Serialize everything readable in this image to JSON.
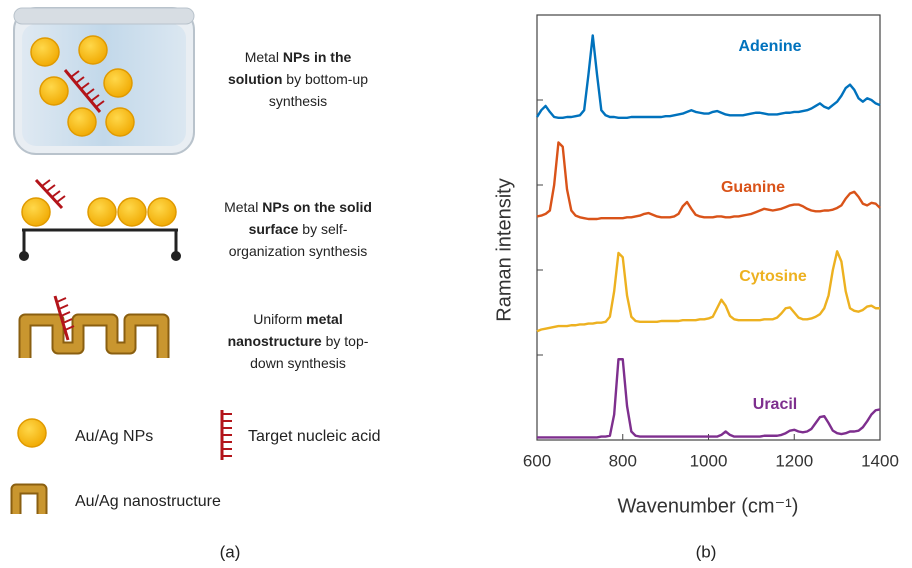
{
  "panel_labels": [
    "(a)",
    "(b)"
  ],
  "diagram": {
    "methods": [
      {
        "lines": [
          [
            {
              "text": "Metal ",
              "bold": false
            },
            {
              "text": "NPs in the",
              "bold": true
            }
          ],
          [
            {
              "text": "solution",
              "bold": true
            },
            {
              "text": " by bottom-up",
              "bold": false
            }
          ],
          [
            {
              "text": "synthesis",
              "bold": false
            }
          ]
        ]
      },
      {
        "lines": [
          [
            {
              "text": "Metal ",
              "bold": false
            },
            {
              "text": "NPs on the solid",
              "bold": true
            }
          ],
          [
            {
              "text": "surface",
              "bold": true
            },
            {
              "text": " by self-",
              "bold": false
            }
          ],
          [
            {
              "text": "organization synthesis",
              "bold": false
            }
          ]
        ]
      },
      {
        "lines": [
          [
            {
              "text": "Uniform ",
              "bold": false
            },
            {
              "text": "metal",
              "bold": true
            }
          ],
          [
            {
              "text": "nanostructure",
              "bold": true
            },
            {
              "text": " by top-",
              "bold": false
            }
          ],
          [
            {
              "text": "down synthesis",
              "bold": false
            }
          ]
        ]
      }
    ],
    "legend": [
      "Au/Ag NPs",
      "Target nucleic acid",
      "Au/Ag nanostructure"
    ]
  },
  "chart_data": {
    "type": "line",
    "xlabel": "Wavenumber (cm⁻¹)",
    "ylabel": "Raman intensity",
    "xlim": [
      600,
      1400
    ],
    "ylim": [
      0,
      5
    ],
    "xticks": [
      600,
      800,
      1000,
      1200,
      1400
    ],
    "yticks": [
      1,
      2,
      3,
      4
    ],
    "x": [
      600,
      610,
      620,
      630,
      640,
      650,
      660,
      670,
      680,
      690,
      700,
      710,
      720,
      730,
      740,
      750,
      760,
      770,
      780,
      790,
      800,
      810,
      820,
      830,
      840,
      850,
      860,
      870,
      880,
      890,
      900,
      910,
      920,
      930,
      940,
      950,
      960,
      970,
      980,
      990,
      1000,
      1010,
      1020,
      1030,
      1040,
      1050,
      1060,
      1070,
      1080,
      1090,
      1100,
      1110,
      1120,
      1130,
      1140,
      1150,
      1160,
      1170,
      1180,
      1190,
      1200,
      1210,
      1220,
      1230,
      1240,
      1250,
      1260,
      1270,
      1280,
      1290,
      1300,
      1310,
      1320,
      1330,
      1340,
      1350,
      1360,
      1370,
      1380,
      1390,
      1400
    ],
    "series": [
      {
        "name": "Adenine",
        "color": "#0072bd",
        "values": [
          3.8,
          3.88,
          3.93,
          3.86,
          3.8,
          3.79,
          3.79,
          3.8,
          3.8,
          3.81,
          3.82,
          3.88,
          4.3,
          4.76,
          4.3,
          3.88,
          3.82,
          3.8,
          3.8,
          3.79,
          3.79,
          3.79,
          3.8,
          3.8,
          3.8,
          3.8,
          3.8,
          3.8,
          3.8,
          3.8,
          3.81,
          3.81,
          3.82,
          3.83,
          3.84,
          3.86,
          3.88,
          3.86,
          3.85,
          3.84,
          3.84,
          3.86,
          3.87,
          3.85,
          3.83,
          3.82,
          3.82,
          3.82,
          3.82,
          3.83,
          3.84,
          3.85,
          3.85,
          3.84,
          3.83,
          3.83,
          3.83,
          3.84,
          3.85,
          3.85,
          3.86,
          3.86,
          3.87,
          3.88,
          3.9,
          3.93,
          3.96,
          3.92,
          3.9,
          3.94,
          3.98,
          4.05,
          4.14,
          4.18,
          4.12,
          4.02,
          3.98,
          4.02,
          4.0,
          3.96,
          3.94
        ]
      },
      {
        "name": "Guanine",
        "color": "#d95319",
        "values": [
          2.63,
          2.64,
          2.66,
          2.7,
          3.0,
          3.5,
          3.45,
          2.95,
          2.7,
          2.64,
          2.62,
          2.61,
          2.6,
          2.6,
          2.6,
          2.61,
          2.61,
          2.61,
          2.61,
          2.61,
          2.61,
          2.62,
          2.62,
          2.63,
          2.64,
          2.66,
          2.67,
          2.65,
          2.63,
          2.62,
          2.62,
          2.62,
          2.63,
          2.66,
          2.75,
          2.8,
          2.72,
          2.65,
          2.63,
          2.62,
          2.62,
          2.62,
          2.63,
          2.63,
          2.62,
          2.62,
          2.63,
          2.63,
          2.64,
          2.65,
          2.66,
          2.68,
          2.7,
          2.72,
          2.71,
          2.7,
          2.71,
          2.72,
          2.74,
          2.76,
          2.77,
          2.77,
          2.75,
          2.72,
          2.7,
          2.69,
          2.69,
          2.7,
          2.7,
          2.71,
          2.73,
          2.76,
          2.84,
          2.9,
          2.92,
          2.86,
          2.78,
          2.76,
          2.79,
          2.78,
          2.73
        ]
      },
      {
        "name": "Cytosine",
        "color": "#edb120",
        "values": [
          1.28,
          1.3,
          1.31,
          1.32,
          1.33,
          1.34,
          1.34,
          1.34,
          1.35,
          1.35,
          1.36,
          1.36,
          1.37,
          1.37,
          1.38,
          1.38,
          1.39,
          1.45,
          1.75,
          2.2,
          2.15,
          1.7,
          1.45,
          1.4,
          1.39,
          1.39,
          1.39,
          1.39,
          1.39,
          1.4,
          1.4,
          1.4,
          1.4,
          1.4,
          1.41,
          1.41,
          1.41,
          1.41,
          1.42,
          1.42,
          1.43,
          1.45,
          1.55,
          1.65,
          1.58,
          1.46,
          1.42,
          1.41,
          1.41,
          1.41,
          1.41,
          1.41,
          1.41,
          1.42,
          1.42,
          1.42,
          1.44,
          1.49,
          1.55,
          1.56,
          1.5,
          1.44,
          1.42,
          1.42,
          1.43,
          1.45,
          1.48,
          1.55,
          1.7,
          2.0,
          2.22,
          2.1,
          1.75,
          1.55,
          1.52,
          1.51,
          1.53,
          1.57,
          1.58,
          1.55,
          1.55
        ]
      },
      {
        "name": "Uracil",
        "color": "#7e2f8e",
        "values": [
          0.03,
          0.03,
          0.03,
          0.03,
          0.03,
          0.03,
          0.03,
          0.03,
          0.03,
          0.03,
          0.03,
          0.03,
          0.03,
          0.03,
          0.03,
          0.04,
          0.04,
          0.05,
          0.3,
          0.95,
          0.95,
          0.4,
          0.1,
          0.05,
          0.04,
          0.04,
          0.04,
          0.04,
          0.04,
          0.04,
          0.04,
          0.04,
          0.04,
          0.04,
          0.04,
          0.04,
          0.04,
          0.04,
          0.04,
          0.04,
          0.04,
          0.04,
          0.04,
          0.06,
          0.1,
          0.06,
          0.04,
          0.04,
          0.04,
          0.04,
          0.04,
          0.04,
          0.04,
          0.05,
          0.05,
          0.05,
          0.05,
          0.06,
          0.08,
          0.11,
          0.12,
          0.1,
          0.09,
          0.1,
          0.13,
          0.2,
          0.27,
          0.28,
          0.2,
          0.11,
          0.08,
          0.07,
          0.08,
          0.1,
          0.1,
          0.11,
          0.15,
          0.22,
          0.3,
          0.35,
          0.36
        ]
      }
    ]
  }
}
